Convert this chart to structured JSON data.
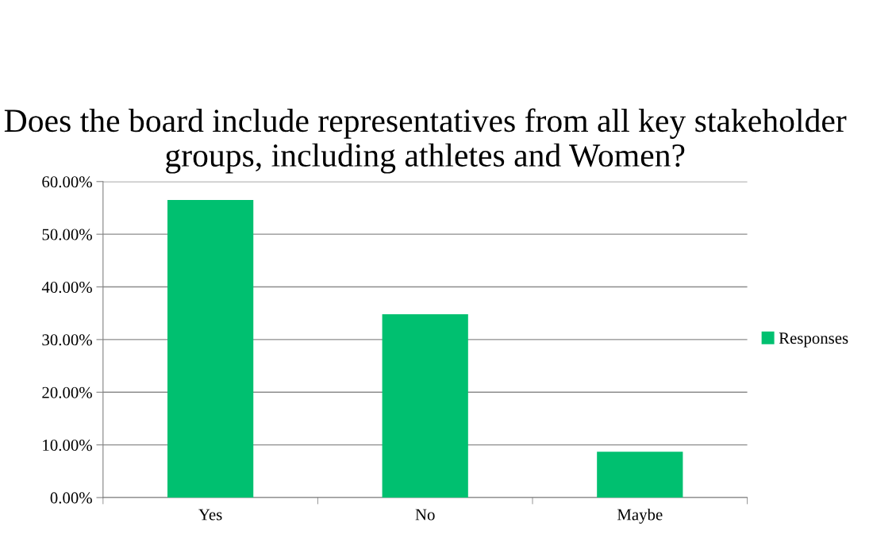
{
  "chart_data": {
    "type": "bar",
    "title": "Does the board include representatives from all key stakeholder groups, including athletes and Women?",
    "categories": [
      "Yes",
      "No",
      "Maybe"
    ],
    "series": [
      {
        "name": "Responses",
        "color": "#00c070",
        "values": [
          56.5,
          34.8,
          8.7
        ]
      }
    ],
    "ylim": [
      0,
      60
    ],
    "yticks": [
      {
        "value": 0,
        "label": "0.00%"
      },
      {
        "value": 10,
        "label": "10.00%"
      },
      {
        "value": 20,
        "label": "20.00%"
      },
      {
        "value": 30,
        "label": "30.00%"
      },
      {
        "value": 40,
        "label": "40.00%"
      },
      {
        "value": 50,
        "label": "50.00%"
      },
      {
        "value": 60,
        "label": "60.00%"
      }
    ],
    "grid": "y",
    "legend": "right"
  }
}
